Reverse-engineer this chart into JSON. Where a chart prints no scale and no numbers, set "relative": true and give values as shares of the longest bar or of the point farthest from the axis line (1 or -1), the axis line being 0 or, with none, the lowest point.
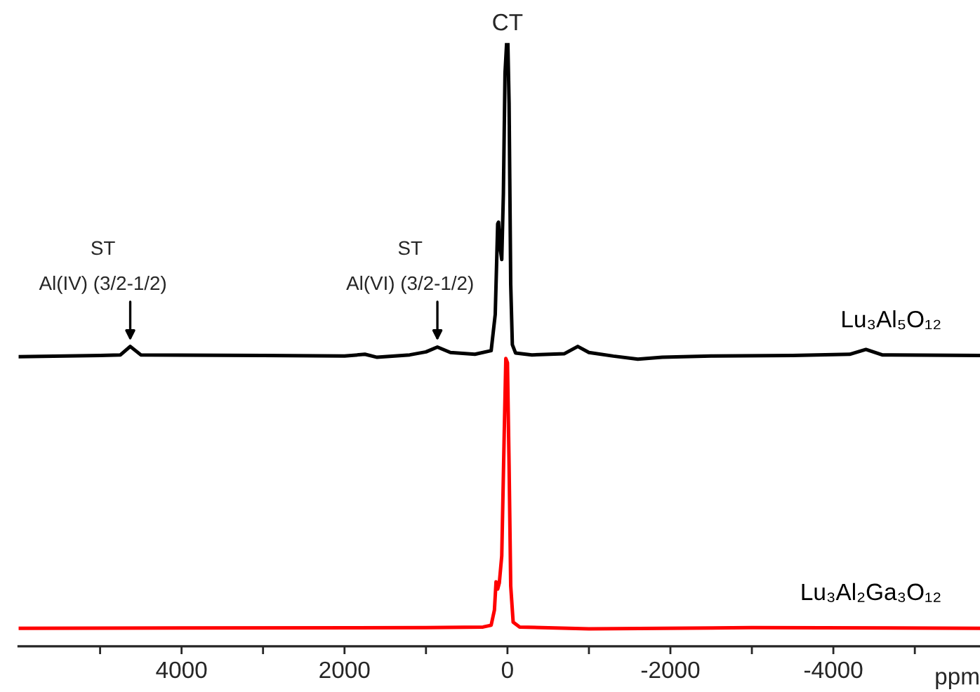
{
  "chart_data": {
    "type": "line",
    "relative": true,
    "xlabel": "ppm",
    "xlim": [
      6000,
      -5800
    ],
    "xticks": [
      {
        "value": 5000,
        "label": null
      },
      4000,
      {
        "value": 3000,
        "label": null
      },
      2000,
      {
        "value": 1000,
        "label": null
      },
      0,
      {
        "value": -1000,
        "label": null
      },
      -2000,
      {
        "value": -3000,
        "label": null
      },
      -4000,
      {
        "value": -5000,
        "label": null
      }
    ],
    "tick_labels": "x",
    "grid": false,
    "annotations": [
      {
        "text": "CT",
        "x": 0,
        "y": 1
      },
      {
        "text": "ST\nAl(IV) (3/2-1/2)",
        "x": 4630,
        "y": 0.5
      },
      {
        "text": "ST\nAl(VI) (3/2-1/2)",
        "x": 860,
        "y": 0.5
      }
    ],
    "series": [
      {
        "name": "Lu₃Al₅O₁₂",
        "color": "#000000",
        "x": [
          6000,
          5000,
          4750,
          4630,
          4500,
          3000,
          2000,
          1750,
          1600,
          1200,
          1000,
          860,
          700,
          400,
          200,
          150,
          120,
          110,
          90,
          70,
          50,
          30,
          10,
          -5,
          -20,
          -40,
          -60,
          -100,
          -300,
          -700,
          -863,
          -1000,
          -1300,
          -1600,
          -1900,
          -2500,
          -3500,
          -4200,
          -4400,
          -4600,
          -5800
        ],
        "values": [
          0.48,
          0.482,
          0.483,
          0.497,
          0.483,
          0.482,
          0.481,
          0.484,
          0.479,
          0.483,
          0.488,
          0.496,
          0.487,
          0.484,
          0.49,
          0.55,
          0.7,
          0.703,
          0.66,
          0.641,
          0.75,
          0.95,
          1.0,
          1.0,
          0.9,
          0.6,
          0.5,
          0.486,
          0.483,
          0.485,
          0.497,
          0.487,
          0.481,
          0.476,
          0.479,
          0.481,
          0.482,
          0.484,
          0.492,
          0.483,
          0.482
        ]
      },
      {
        "name": "Lu₃Al₂Ga₃O₁₂",
        "color": "#ff0000",
        "x": [
          6000,
          1000,
          300,
          200,
          160,
          140,
          120,
          100,
          70,
          40,
          20,
          0,
          -20,
          -40,
          -70,
          -150,
          -1000,
          -3000,
          -5800
        ],
        "values": [
          0.03,
          0.031,
          0.032,
          0.035,
          0.06,
          0.107,
          0.095,
          0.105,
          0.15,
          0.35,
          0.477,
          0.47,
          0.3,
          0.1,
          0.04,
          0.032,
          0.029,
          0.031,
          0.03
        ]
      }
    ]
  }
}
